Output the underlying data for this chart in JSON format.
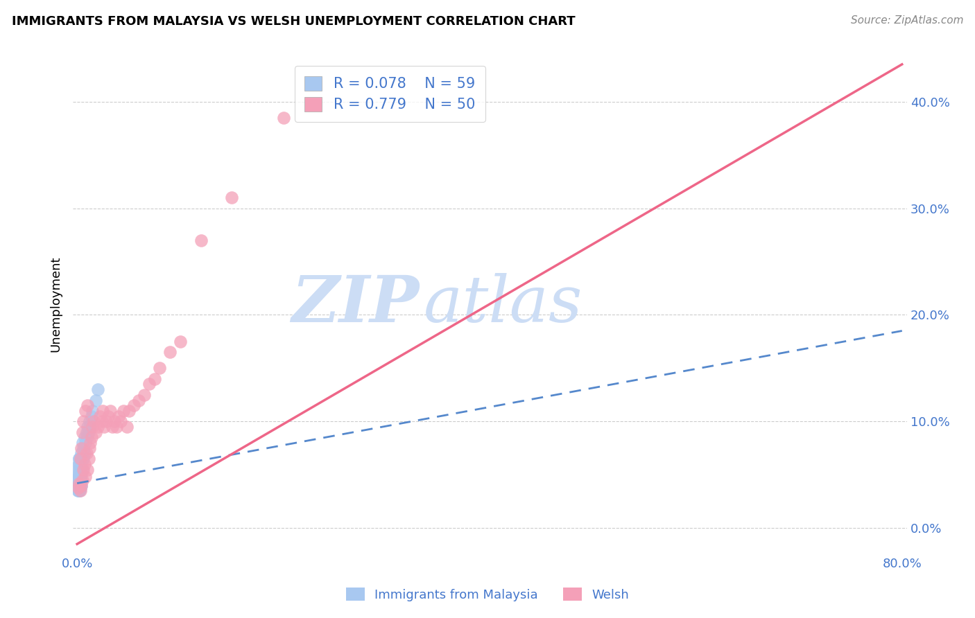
{
  "title": "IMMIGRANTS FROM MALAYSIA VS WELSH UNEMPLOYMENT CORRELATION CHART",
  "source": "Source: ZipAtlas.com",
  "ylabel": "Unemployment",
  "blue_color": "#a8c8f0",
  "pink_color": "#f4a0b8",
  "blue_line_color": "#5588cc",
  "pink_line_color": "#ee6688",
  "text_color": "#4477cc",
  "watermark_zip": "ZIP",
  "watermark_atlas": "atlas",
  "watermark_color": "#ccddf5",
  "xlim": [
    -0.004,
    0.805
  ],
  "ylim": [
    -0.025,
    0.445
  ],
  "yticks": [
    0.0,
    0.1,
    0.2,
    0.3,
    0.4
  ],
  "ytick_labels_right": [
    "0.0%",
    "10.0%",
    "20.0%",
    "30.0%",
    "40.0%"
  ],
  "xticks": [
    0.0,
    0.1,
    0.2,
    0.3,
    0.4,
    0.5,
    0.6,
    0.7,
    0.8
  ],
  "xtick_labels": [
    "0.0%",
    "",
    "",
    "",
    "",
    "",
    "",
    "",
    "80.0%"
  ],
  "blue_scatter_x": [
    0.0005,
    0.0008,
    0.001,
    0.001,
    0.001,
    0.001,
    0.0012,
    0.0012,
    0.0013,
    0.0013,
    0.0014,
    0.0015,
    0.0015,
    0.0016,
    0.0016,
    0.0017,
    0.0018,
    0.002,
    0.002,
    0.002,
    0.002,
    0.002,
    0.002,
    0.002,
    0.0022,
    0.0022,
    0.0025,
    0.0025,
    0.0025,
    0.003,
    0.003,
    0.003,
    0.003,
    0.003,
    0.003,
    0.003,
    0.004,
    0.004,
    0.004,
    0.004,
    0.004,
    0.005,
    0.005,
    0.005,
    0.006,
    0.006,
    0.007,
    0.007,
    0.008,
    0.009,
    0.01,
    0.01,
    0.011,
    0.012,
    0.013,
    0.014,
    0.015,
    0.018,
    0.02
  ],
  "blue_scatter_y": [
    0.035,
    0.04,
    0.038,
    0.042,
    0.045,
    0.05,
    0.038,
    0.055,
    0.04,
    0.06,
    0.042,
    0.035,
    0.048,
    0.038,
    0.065,
    0.042,
    0.05,
    0.035,
    0.04,
    0.042,
    0.045,
    0.048,
    0.055,
    0.06,
    0.038,
    0.065,
    0.035,
    0.04,
    0.045,
    0.038,
    0.042,
    0.048,
    0.05,
    0.055,
    0.06,
    0.065,
    0.04,
    0.045,
    0.05,
    0.06,
    0.07,
    0.055,
    0.065,
    0.08,
    0.065,
    0.075,
    0.07,
    0.085,
    0.08,
    0.09,
    0.085,
    0.095,
    0.09,
    0.1,
    0.095,
    0.105,
    0.11,
    0.12,
    0.13
  ],
  "pink_scatter_x": [
    0.001,
    0.002,
    0.003,
    0.003,
    0.004,
    0.004,
    0.005,
    0.005,
    0.006,
    0.006,
    0.007,
    0.008,
    0.008,
    0.009,
    0.01,
    0.01,
    0.011,
    0.012,
    0.013,
    0.014,
    0.015,
    0.016,
    0.018,
    0.02,
    0.022,
    0.024,
    0.025,
    0.026,
    0.028,
    0.03,
    0.032,
    0.034,
    0.036,
    0.038,
    0.04,
    0.042,
    0.045,
    0.048,
    0.05,
    0.055,
    0.06,
    0.065,
    0.07,
    0.075,
    0.08,
    0.09,
    0.1,
    0.12,
    0.15,
    0.2
  ],
  "pink_scatter_y": [
    0.038,
    0.042,
    0.035,
    0.065,
    0.04,
    0.075,
    0.045,
    0.09,
    0.055,
    0.1,
    0.06,
    0.048,
    0.11,
    0.07,
    0.055,
    0.115,
    0.065,
    0.075,
    0.08,
    0.085,
    0.095,
    0.1,
    0.09,
    0.095,
    0.105,
    0.1,
    0.11,
    0.095,
    0.1,
    0.105,
    0.11,
    0.095,
    0.1,
    0.095,
    0.105,
    0.1,
    0.11,
    0.095,
    0.11,
    0.115,
    0.12,
    0.125,
    0.135,
    0.14,
    0.15,
    0.165,
    0.175,
    0.27,
    0.31,
    0.385
  ],
  "blue_line": {
    "x0": 0.0,
    "y0": 0.042,
    "x1": 0.8,
    "y1": 0.185
  },
  "pink_line": {
    "x0": 0.0,
    "y0": -0.015,
    "x1": 0.8,
    "y1": 0.435
  }
}
